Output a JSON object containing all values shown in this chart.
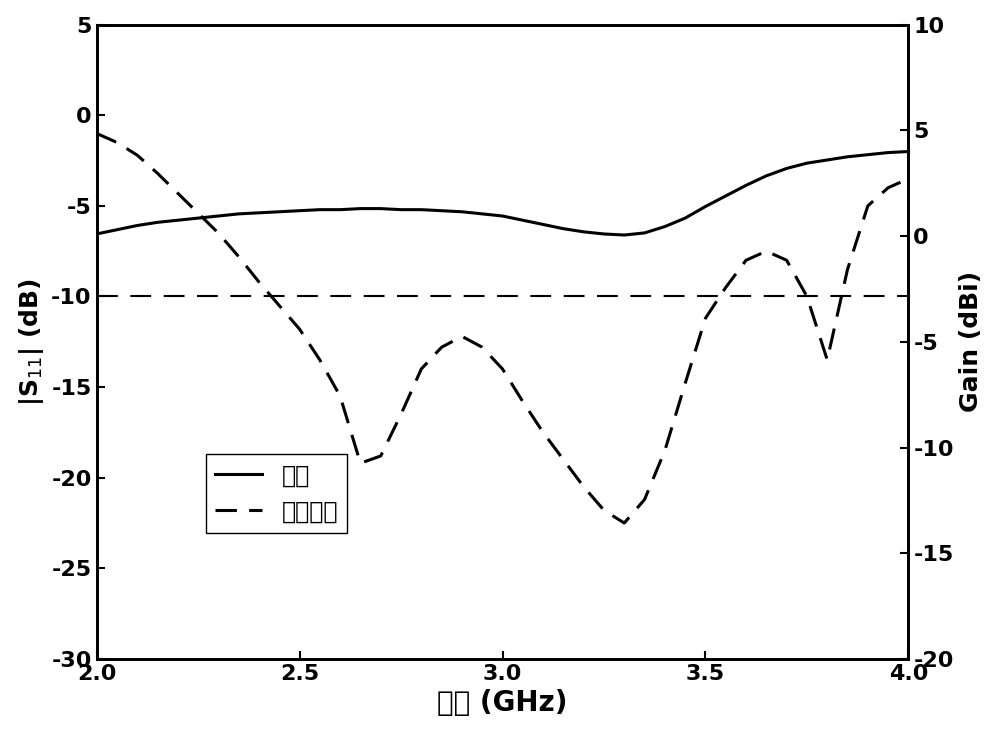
{
  "freq": [
    2.0,
    2.05,
    2.1,
    2.15,
    2.2,
    2.25,
    2.3,
    2.35,
    2.4,
    2.45,
    2.5,
    2.55,
    2.6,
    2.65,
    2.7,
    2.75,
    2.8,
    2.85,
    2.9,
    2.95,
    3.0,
    3.05,
    3.1,
    3.15,
    3.2,
    3.25,
    3.3,
    3.35,
    3.4,
    3.45,
    3.5,
    3.55,
    3.6,
    3.65,
    3.7,
    3.75,
    3.8,
    3.85,
    3.9,
    3.95,
    4.0
  ],
  "gain_values": [
    0.1,
    0.3,
    0.5,
    0.65,
    0.75,
    0.85,
    0.95,
    1.05,
    1.1,
    1.15,
    1.2,
    1.25,
    1.25,
    1.3,
    1.3,
    1.25,
    1.25,
    1.2,
    1.15,
    1.05,
    0.95,
    0.75,
    0.55,
    0.35,
    0.2,
    0.1,
    0.05,
    0.15,
    0.45,
    0.85,
    1.4,
    1.9,
    2.4,
    2.85,
    3.2,
    3.45,
    3.6,
    3.75,
    3.85,
    3.95,
    4.0
  ],
  "s11_values": [
    -1.0,
    -1.5,
    -2.2,
    -3.2,
    -4.3,
    -5.4,
    -6.5,
    -7.8,
    -9.2,
    -10.5,
    -11.8,
    -13.5,
    -15.5,
    -19.2,
    -18.8,
    -16.5,
    -14.0,
    -12.8,
    -12.2,
    -12.8,
    -14.0,
    -15.8,
    -17.5,
    -19.0,
    -20.5,
    -21.8,
    -22.5,
    -21.2,
    -18.5,
    -14.8,
    -11.2,
    -9.5,
    -8.0,
    -7.5,
    -8.0,
    -10.0,
    -13.5,
    -8.5,
    -5.0,
    -4.0,
    -3.5
  ],
  "ref_line_y": -10,
  "xlim": [
    2.0,
    4.0
  ],
  "ylim_left": [
    -30,
    5
  ],
  "ylim_right": [
    -20,
    10
  ],
  "yticks_left": [
    -30,
    -25,
    -20,
    -15,
    -10,
    -5,
    0,
    5
  ],
  "yticks_right": [
    -20,
    -15,
    -10,
    -5,
    0,
    5,
    10
  ],
  "xticks": [
    2.0,
    2.5,
    3.0,
    3.5,
    4.0
  ],
  "xlabel": "频率 (GHz)",
  "ylabel_left": "|S$_{11}$| (dB)",
  "ylabel_right": "Gain (dBi)",
  "legend_gain": "增益",
  "legend_s11": "反射系数",
  "line_color": "#000000",
  "bg_color": "#ffffff",
  "linewidth": 2.2,
  "tick_fontsize": 16,
  "label_fontsize": 18,
  "legend_fontsize": 17
}
